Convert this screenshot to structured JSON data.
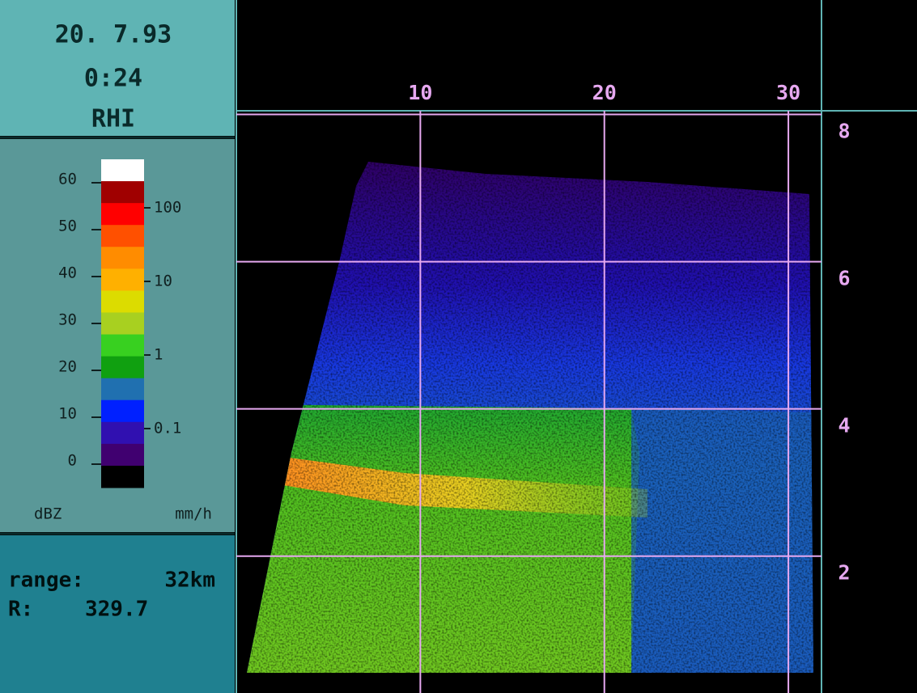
{
  "header": {
    "date": "20. 7.93",
    "time": "0:24",
    "mode": "RHI"
  },
  "colorbar": {
    "dbz_label": "dBZ",
    "rain_label": "mm/h",
    "dbz_ticks": [
      0,
      10,
      20,
      30,
      40,
      50,
      60
    ],
    "dbz_lim": [
      -5,
      65
    ],
    "rain_ticks": [
      100,
      10,
      1,
      0.1
    ],
    "rain_lim": [
      0.1,
      100
    ],
    "rain_scale": "log",
    "colors": [
      "#ffffff",
      "#a00000",
      "#ff0000",
      "#ff5000",
      "#ff8c00",
      "#ffb000",
      "#dcdc00",
      "#a8d020",
      "#38d020",
      "#10a010",
      "#2070b0",
      "#0020ff",
      "#3010b0",
      "#400070",
      "#000000"
    ]
  },
  "info": {
    "range_label": "range:",
    "range_value": "32km",
    "r_label": "R:",
    "r_value": "329.7"
  },
  "plot": {
    "xticks": [
      10,
      20,
      30
    ],
    "xlim": [
      0,
      31.8
    ],
    "yticks": [
      2,
      4,
      6,
      8
    ],
    "ylim": [
      0.14,
      8.05
    ],
    "grid_color": "#e6a8f0"
  }
}
